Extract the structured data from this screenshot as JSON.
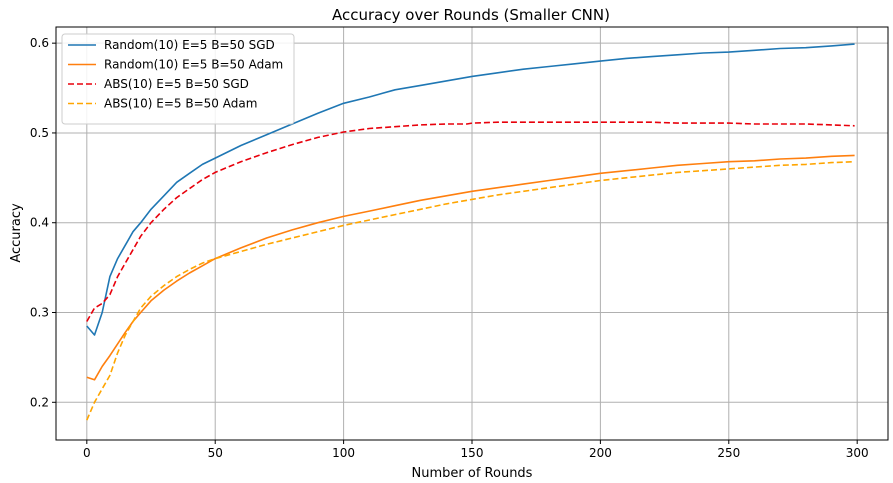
{
  "chart_data": {
    "type": "line",
    "title": "Accuracy over Rounds (Smaller CNN)",
    "xlabel": "Number of Rounds",
    "ylabel": "Accuracy",
    "xlim": [
      -12,
      312
    ],
    "ylim": [
      0.158,
      0.618
    ],
    "xticks": [
      0,
      50,
      100,
      150,
      200,
      250,
      300
    ],
    "yticks": [
      0.2,
      0.3,
      0.4,
      0.5,
      0.6
    ],
    "grid": true,
    "legend_position": "top-left",
    "series": [
      {
        "name": "Random(10) E=5 B=50 SGD",
        "color": "#1f77b4",
        "linestyle": "solid",
        "points": [
          [
            0,
            0.285
          ],
          [
            3,
            0.275
          ],
          [
            6,
            0.3
          ],
          [
            9,
            0.34
          ],
          [
            12,
            0.36
          ],
          [
            15,
            0.375
          ],
          [
            18,
            0.39
          ],
          [
            21,
            0.4
          ],
          [
            25,
            0.415
          ],
          [
            30,
            0.43
          ],
          [
            35,
            0.445
          ],
          [
            40,
            0.455
          ],
          [
            45,
            0.465
          ],
          [
            50,
            0.472
          ],
          [
            60,
            0.486
          ],
          [
            70,
            0.498
          ],
          [
            80,
            0.51
          ],
          [
            90,
            0.522
          ],
          [
            100,
            0.533
          ],
          [
            110,
            0.54
          ],
          [
            120,
            0.548
          ],
          [
            130,
            0.553
          ],
          [
            140,
            0.558
          ],
          [
            150,
            0.563
          ],
          [
            160,
            0.567
          ],
          [
            170,
            0.571
          ],
          [
            180,
            0.574
          ],
          [
            190,
            0.577
          ],
          [
            200,
            0.58
          ],
          [
            210,
            0.583
          ],
          [
            220,
            0.585
          ],
          [
            230,
            0.587
          ],
          [
            240,
            0.589
          ],
          [
            250,
            0.59
          ],
          [
            260,
            0.592
          ],
          [
            270,
            0.594
          ],
          [
            280,
            0.595
          ],
          [
            290,
            0.597
          ],
          [
            299,
            0.599
          ]
        ]
      },
      {
        "name": "Random(10) E=5 B=50 Adam",
        "color": "#ff7f0e",
        "linestyle": "solid",
        "points": [
          [
            0,
            0.228
          ],
          [
            3,
            0.225
          ],
          [
            6,
            0.24
          ],
          [
            9,
            0.252
          ],
          [
            12,
            0.265
          ],
          [
            15,
            0.278
          ],
          [
            18,
            0.29
          ],
          [
            21,
            0.3
          ],
          [
            25,
            0.313
          ],
          [
            30,
            0.325
          ],
          [
            35,
            0.335
          ],
          [
            40,
            0.344
          ],
          [
            45,
            0.352
          ],
          [
            50,
            0.36
          ],
          [
            60,
            0.372
          ],
          [
            70,
            0.383
          ],
          [
            80,
            0.392
          ],
          [
            90,
            0.4
          ],
          [
            100,
            0.407
          ],
          [
            110,
            0.413
          ],
          [
            120,
            0.419
          ],
          [
            130,
            0.425
          ],
          [
            140,
            0.43
          ],
          [
            150,
            0.435
          ],
          [
            160,
            0.439
          ],
          [
            170,
            0.443
          ],
          [
            180,
            0.447
          ],
          [
            190,
            0.451
          ],
          [
            200,
            0.455
          ],
          [
            210,
            0.458
          ],
          [
            220,
            0.461
          ],
          [
            230,
            0.464
          ],
          [
            240,
            0.466
          ],
          [
            250,
            0.468
          ],
          [
            260,
            0.469
          ],
          [
            270,
            0.471
          ],
          [
            280,
            0.472
          ],
          [
            290,
            0.474
          ],
          [
            299,
            0.475
          ]
        ]
      },
      {
        "name": "ABS(10) E=5 B=50 SGD",
        "color": "#e8000b",
        "linestyle": "dashed",
        "points": [
          [
            0,
            0.29
          ],
          [
            3,
            0.305
          ],
          [
            6,
            0.31
          ],
          [
            9,
            0.32
          ],
          [
            12,
            0.34
          ],
          [
            15,
            0.355
          ],
          [
            18,
            0.37
          ],
          [
            21,
            0.385
          ],
          [
            25,
            0.4
          ],
          [
            30,
            0.415
          ],
          [
            35,
            0.428
          ],
          [
            40,
            0.438
          ],
          [
            45,
            0.448
          ],
          [
            50,
            0.456
          ],
          [
            60,
            0.468
          ],
          [
            70,
            0.478
          ],
          [
            80,
            0.487
          ],
          [
            90,
            0.495
          ],
          [
            100,
            0.501
          ],
          [
            110,
            0.505
          ],
          [
            120,
            0.507
          ],
          [
            130,
            0.509
          ],
          [
            140,
            0.51
          ],
          [
            148,
            0.51
          ],
          [
            150,
            0.511
          ],
          [
            160,
            0.512
          ],
          [
            170,
            0.512
          ],
          [
            180,
            0.512
          ],
          [
            190,
            0.512
          ],
          [
            200,
            0.512
          ],
          [
            210,
            0.512
          ],
          [
            220,
            0.512
          ],
          [
            230,
            0.511
          ],
          [
            240,
            0.511
          ],
          [
            250,
            0.511
          ],
          [
            260,
            0.51
          ],
          [
            270,
            0.51
          ],
          [
            280,
            0.51
          ],
          [
            290,
            0.509
          ],
          [
            299,
            0.508
          ]
        ]
      },
      {
        "name": "ABS(10) E=5 B=50 Adam",
        "color": "#ffa500",
        "linestyle": "dashed",
        "points": [
          [
            0,
            0.18
          ],
          [
            3,
            0.2
          ],
          [
            6,
            0.215
          ],
          [
            9,
            0.23
          ],
          [
            12,
            0.255
          ],
          [
            15,
            0.275
          ],
          [
            18,
            0.29
          ],
          [
            21,
            0.305
          ],
          [
            25,
            0.318
          ],
          [
            30,
            0.33
          ],
          [
            35,
            0.34
          ],
          [
            40,
            0.348
          ],
          [
            45,
            0.355
          ],
          [
            50,
            0.36
          ],
          [
            60,
            0.368
          ],
          [
            70,
            0.376
          ],
          [
            80,
            0.383
          ],
          [
            90,
            0.39
          ],
          [
            100,
            0.397
          ],
          [
            110,
            0.403
          ],
          [
            120,
            0.409
          ],
          [
            130,
            0.415
          ],
          [
            140,
            0.421
          ],
          [
            150,
            0.426
          ],
          [
            160,
            0.431
          ],
          [
            170,
            0.435
          ],
          [
            180,
            0.439
          ],
          [
            190,
            0.443
          ],
          [
            200,
            0.447
          ],
          [
            210,
            0.45
          ],
          [
            220,
            0.453
          ],
          [
            230,
            0.456
          ],
          [
            240,
            0.458
          ],
          [
            250,
            0.46
          ],
          [
            260,
            0.462
          ],
          [
            270,
            0.464
          ],
          [
            280,
            0.465
          ],
          [
            290,
            0.467
          ],
          [
            299,
            0.468
          ]
        ]
      }
    ]
  }
}
